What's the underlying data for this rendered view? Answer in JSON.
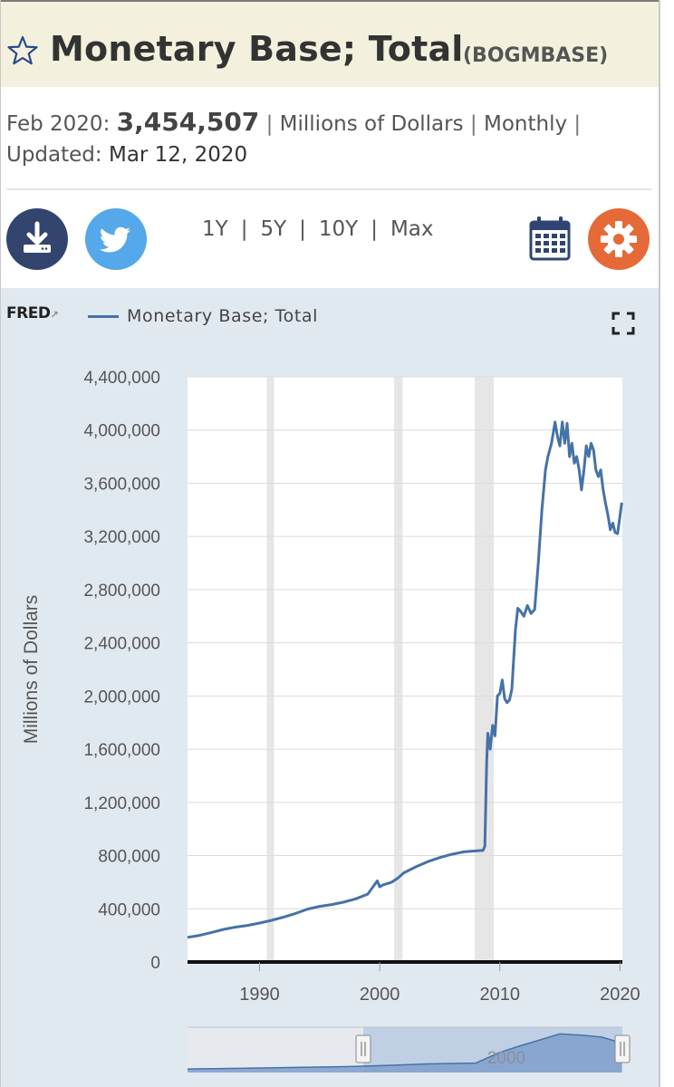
{
  "header": {
    "title": "Monetary Base; Total",
    "series_id": "(BOGMBASE)"
  },
  "meta": {
    "period": "Feb 2020:",
    "value": "3,454,507",
    "units": "Millions of Dollars",
    "frequency": "Monthly",
    "updated_label": "Updated:",
    "updated_date": "Mar 12, 2020",
    "separator": "|"
  },
  "toolbar": {
    "icons": [
      "download-icon",
      "twitter-icon",
      "calendar-icon",
      "gear-icon"
    ],
    "ranges": [
      "1Y",
      "5Y",
      "10Y",
      "Max"
    ]
  },
  "chart_header": {
    "logo": "FRED",
    "legend_label": "Monetary Base; Total"
  },
  "colors": {
    "series": "#4572a7",
    "title_bg": "#f3f1dd",
    "chart_bg": "#e1e9f0",
    "recession": "#e6e6e6",
    "download": "#33456e",
    "twitter": "#55a8e9",
    "settings": "#e56a38"
  },
  "chart_data": {
    "type": "line",
    "ylabel": "Millions of Dollars",
    "ylim": [
      0,
      4400000
    ],
    "xlim": [
      1984.0,
      2020.2
    ],
    "y_ticks": [
      0,
      400000,
      800000,
      1200000,
      1600000,
      2000000,
      2400000,
      2800000,
      3200000,
      3600000,
      4000000,
      4400000
    ],
    "y_tick_labels": [
      "0",
      "400,000",
      "800,000",
      "1,200,000",
      "1,600,000",
      "2,000,000",
      "2,400,000",
      "2,800,000",
      "3,200,000",
      "3,600,000",
      "4,000,000",
      "4,400,000"
    ],
    "x_ticks": [
      1990,
      2000,
      2010,
      2020
    ],
    "x_tick_labels": [
      "1990",
      "2000",
      "2010",
      "2020"
    ],
    "recessions": [
      [
        1990.6,
        1991.2
      ],
      [
        2001.2,
        2001.9
      ],
      [
        2007.9,
        2009.5
      ]
    ],
    "grid": true,
    "navigator_label": "2000",
    "series": [
      {
        "name": "Monetary Base; Total",
        "x": [
          1984.0,
          1985.0,
          1986.0,
          1987.0,
          1988.0,
          1989.0,
          1990.0,
          1991.0,
          1992.0,
          1993.0,
          1994.0,
          1995.0,
          1996.0,
          1997.0,
          1998.0,
          1999.0,
          1999.8,
          2000.0,
          2000.3,
          2001.0,
          2001.5,
          2002.0,
          2003.0,
          2004.0,
          2005.0,
          2006.0,
          2007.0,
          2008.0,
          2008.6,
          2008.75,
          2008.9,
          2009.0,
          2009.2,
          2009.4,
          2009.6,
          2009.8,
          2010.0,
          2010.2,
          2010.4,
          2010.6,
          2010.8,
          2011.0,
          2011.3,
          2011.5,
          2011.7,
          2012.0,
          2012.3,
          2012.6,
          2012.9,
          2013.2,
          2013.5,
          2013.8,
          2014.0,
          2014.3,
          2014.6,
          2014.8,
          2015.0,
          2015.2,
          2015.4,
          2015.6,
          2015.8,
          2016.0,
          2016.2,
          2016.4,
          2016.6,
          2016.8,
          2017.0,
          2017.2,
          2017.4,
          2017.6,
          2017.8,
          2018.0,
          2018.2,
          2018.4,
          2018.6,
          2018.8,
          2019.0,
          2019.2,
          2019.4,
          2019.6,
          2019.8,
          2020.0,
          2020.15
        ],
        "y": [
          185000,
          200000,
          222000,
          245000,
          262000,
          275000,
          293000,
          313000,
          338000,
          365000,
          398000,
          418000,
          432000,
          450000,
          475000,
          510000,
          610000,
          565000,
          580000,
          600000,
          630000,
          670000,
          715000,
          755000,
          785000,
          810000,
          828000,
          835000,
          840000,
          870000,
          1500000,
          1720000,
          1600000,
          1780000,
          1700000,
          2000000,
          2020000,
          2120000,
          1980000,
          1950000,
          1970000,
          2050000,
          2500000,
          2660000,
          2640000,
          2600000,
          2680000,
          2620000,
          2650000,
          3000000,
          3400000,
          3700000,
          3800000,
          3900000,
          4060000,
          3950000,
          3880000,
          4060000,
          3900000,
          4050000,
          3800000,
          3900000,
          3750000,
          3800000,
          3700000,
          3550000,
          3700000,
          3880000,
          3800000,
          3900000,
          3850000,
          3700000,
          3650000,
          3700000,
          3550000,
          3450000,
          3360000,
          3250000,
          3300000,
          3230000,
          3220000,
          3350000,
          3454507
        ]
      }
    ],
    "navigator_y": [
      185000,
      275000,
      365000,
      475000,
      600000,
      755000,
      835000,
      2020000,
      2660000,
      4060000,
      3900000,
      3700000,
      3300000,
      3454507
    ],
    "navigator_x": [
      1984,
      1989,
      1993,
      1998,
      2001,
      2004,
      2008,
      2010,
      2011.5,
      2015,
      2017,
      2018.5,
      2019.5,
      2020.15
    ]
  }
}
